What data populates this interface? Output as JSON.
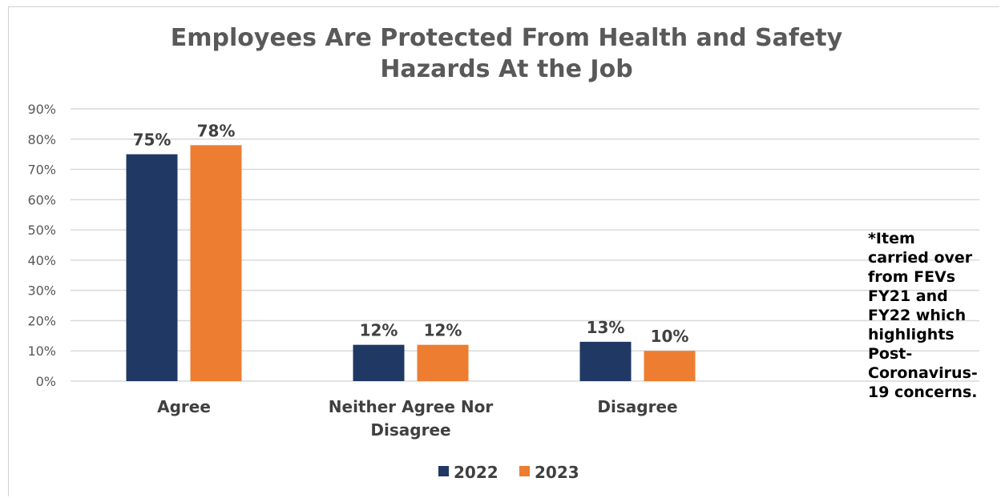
{
  "chart_data": {
    "type": "bar",
    "title": "Employees Are Protected From Health and Safety Hazards At the Job",
    "title_lines": [
      "Employees Are Protected From Health and Safety",
      "Hazards At the Job"
    ],
    "categories": [
      "Agree",
      "Neither Agree Nor Disagree",
      "Disagree"
    ],
    "category_lines": [
      [
        "Agree"
      ],
      [
        "Neither Agree Nor",
        "Disagree"
      ],
      [
        "Disagree"
      ]
    ],
    "series": [
      {
        "name": "2022",
        "color": "#203864",
        "values": [
          75,
          12,
          13
        ],
        "labels": [
          "75%",
          "12%",
          "13%"
        ]
      },
      {
        "name": "2023",
        "color": "#ED7D31",
        "values": [
          78,
          12,
          10
        ],
        "labels": [
          "78%",
          "12%",
          "10%"
        ]
      }
    ],
    "y_ticks": [
      0,
      10,
      20,
      30,
      40,
      50,
      60,
      70,
      80,
      90
    ],
    "y_tick_labels": [
      "0%",
      "10%",
      "20%",
      "30%",
      "40%",
      "50%",
      "60%",
      "70%",
      "80%",
      "90%"
    ],
    "ylim": [
      0,
      90
    ],
    "grid": true,
    "legend_position": "bottom",
    "xlabel": "",
    "ylabel": ""
  },
  "note_lines": [
    "*Item",
    "carried over",
    "from FEVs",
    "FY21 and",
    "FY22 which",
    "highlights",
    "Post-",
    "Coronavirus-",
    "19 concerns."
  ]
}
